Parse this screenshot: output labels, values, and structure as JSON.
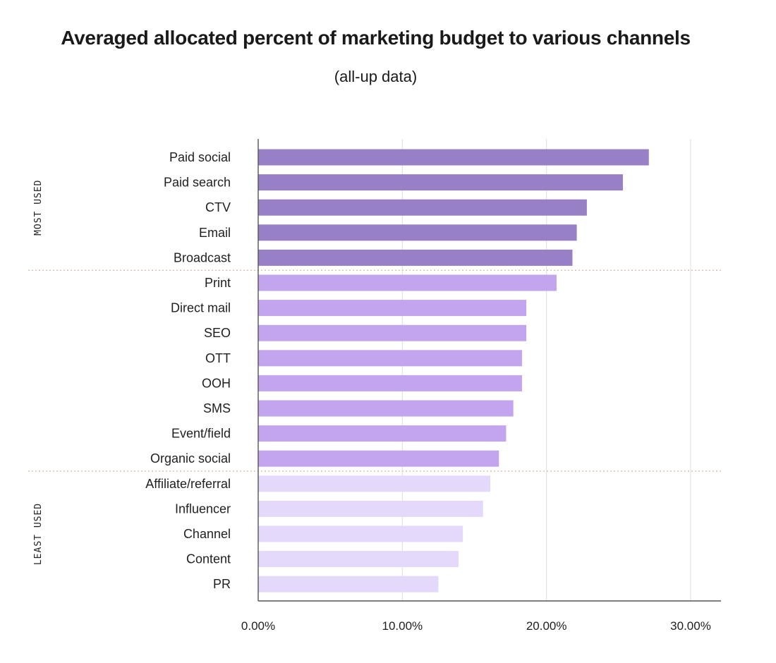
{
  "chart_data": {
    "type": "bar",
    "orientation": "horizontal",
    "title": "Averaged allocated percent of marketing budget to various channels",
    "subtitle": "(all-up data)",
    "xlim": [
      0,
      32
    ],
    "xticks": [
      0,
      10,
      20,
      30
    ],
    "xtick_labels": [
      "0.00%",
      "10.00%",
      "20.00%",
      "30.00%"
    ],
    "grid": "vertical",
    "categories": [
      "Paid social",
      "Paid search",
      "CTV",
      "Email",
      "Broadcast",
      "Print",
      "Direct mail",
      "SEO",
      "OTT",
      "OOH",
      "SMS",
      "Event/field",
      "Organic social",
      "Affiliate/referral",
      "Influencer",
      "Channel",
      "Content",
      "PR"
    ],
    "values": [
      27.1,
      25.3,
      22.8,
      22.1,
      21.8,
      20.7,
      18.6,
      18.6,
      18.3,
      18.3,
      17.7,
      17.2,
      16.7,
      16.1,
      15.6,
      14.2,
      13.9,
      12.5
    ],
    "groups": [
      {
        "name": "MOST USED",
        "count": 5,
        "color": "#9780c6"
      },
      {
        "name": "",
        "count": 8,
        "color": "#c2a5ee"
      },
      {
        "name": "LEAST USED",
        "count": 5,
        "color": "#e4d8fb"
      }
    ]
  },
  "colors": {
    "separator_dots": "#d9c6b0",
    "gridline": "#e2e2e2",
    "axis": "#555555"
  }
}
